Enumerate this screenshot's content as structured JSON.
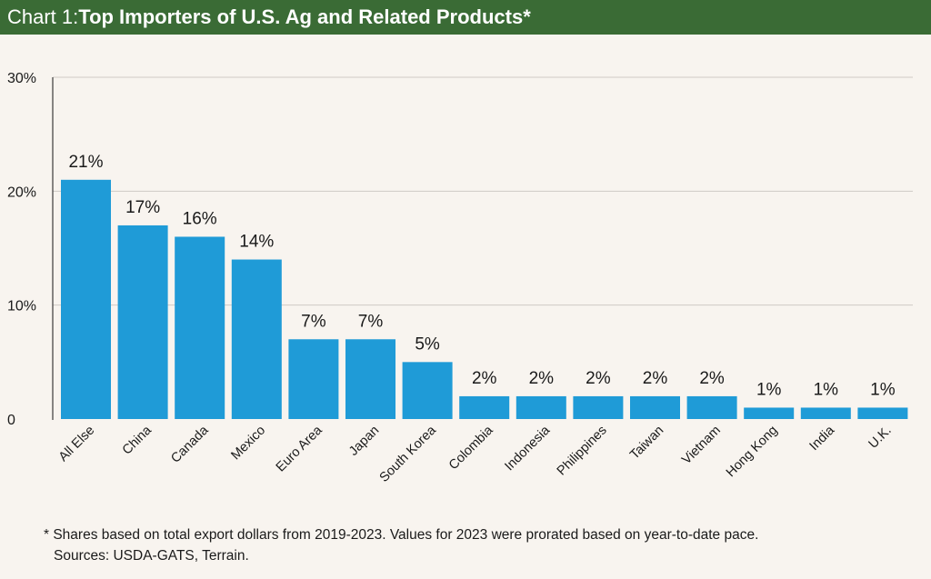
{
  "header": {
    "prefix": "Chart 1: ",
    "title": "Top Importers of U.S. Ag and Related Products*"
  },
  "colors": {
    "header_bg": "#3a6b35",
    "bar": "#1f9bd7",
    "background": "#f8f4ef",
    "grid": "#cfcac4",
    "axis": "#3a3a3a"
  },
  "chart_data": {
    "type": "bar",
    "title": "Top Importers of U.S. Ag and Related Products*",
    "xlabel": "",
    "ylabel": "",
    "ylim": [
      0,
      30
    ],
    "yticks": [
      0,
      10,
      20,
      30
    ],
    "ytick_labels": [
      "0",
      "10%",
      "20%",
      "30%"
    ],
    "categories": [
      "All Else",
      "China",
      "Canada",
      "Mexico",
      "Euro Area",
      "Japan",
      "South Korea",
      "Colombia",
      "Indonesia",
      "Philippines",
      "Taiwan",
      "Vietnam",
      "Hong Kong",
      "India",
      "U.K."
    ],
    "values": [
      21,
      17,
      16,
      14,
      7,
      7,
      5,
      2,
      2,
      2,
      2,
      2,
      1,
      1,
      1
    ],
    "data_labels": [
      "21%",
      "17%",
      "16%",
      "14%",
      "7%",
      "7%",
      "5%",
      "2%",
      "2%",
      "2%",
      "2%",
      "2%",
      "1%",
      "1%",
      "1%"
    ],
    "grid": true
  },
  "footnote": {
    "line1": "* Shares based on total export dollars from 2019-2023. Values for 2023 were prorated based on year-to-date pace.",
    "line2": "Sources: USDA-GATS, Terrain."
  }
}
